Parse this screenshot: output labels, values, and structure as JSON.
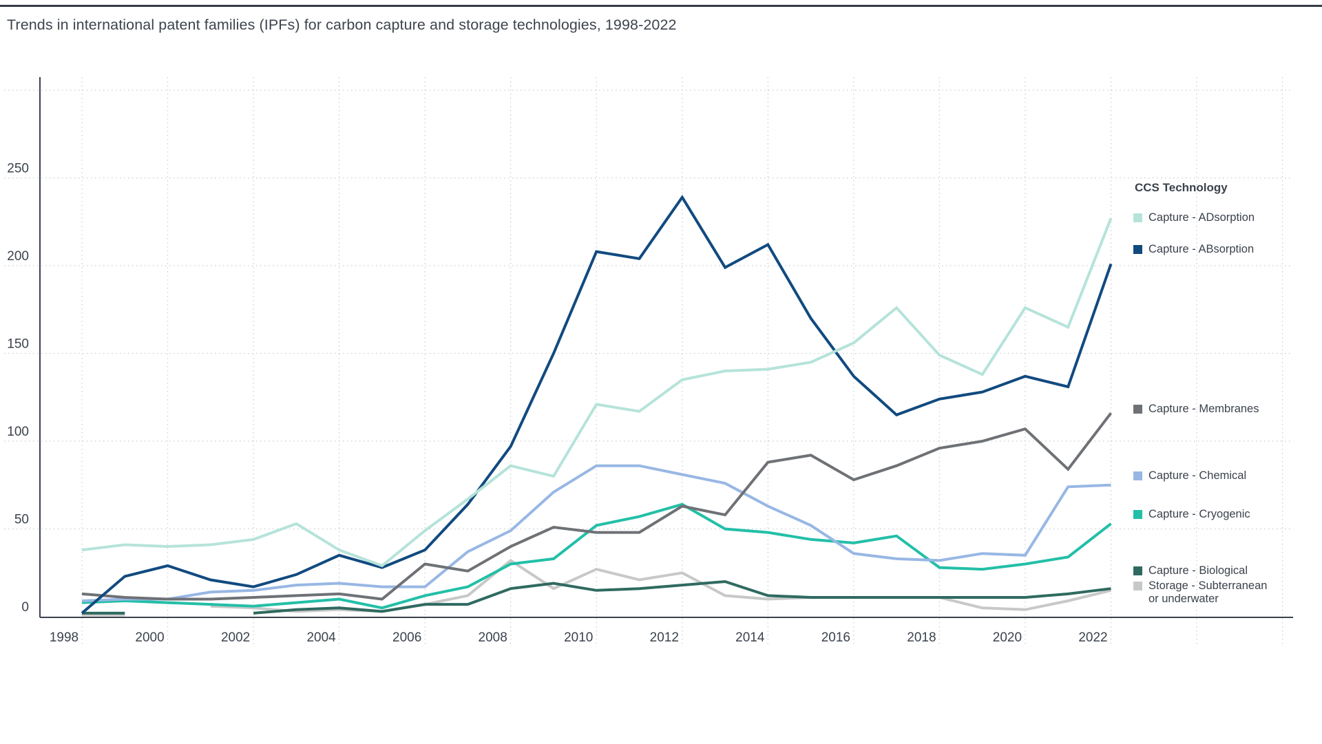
{
  "page": {
    "title": "Trends in international patent families (IPFs) for carbon capture and storage technologies, 1998-2022"
  },
  "chart_data": {
    "type": "line",
    "title": "Trends in international patent families (IPFs) for carbon capture and storage technologies, 1998-2022",
    "xlabel": "",
    "ylabel": "",
    "x": [
      1998,
      1999,
      2000,
      2001,
      2002,
      2003,
      2004,
      2005,
      2006,
      2007,
      2008,
      2009,
      2010,
      2011,
      2012,
      2013,
      2014,
      2015,
      2016,
      2017,
      2018,
      2019,
      2020,
      2021,
      2022
    ],
    "x_tick_labels": [
      "1998",
      "2000",
      "2002",
      "2004",
      "2006",
      "2008",
      "2010",
      "2012",
      "2014",
      "2016",
      "2018",
      "2020",
      "2022"
    ],
    "y_ticks": [
      0,
      50,
      100,
      150,
      200,
      250
    ],
    "ylim": [
      0,
      307
    ],
    "grid": "dotted",
    "legend_position": "right",
    "legend_title": "CCS Technology",
    "series": [
      {
        "name": "Capture - ADsorption",
        "color": "#b5e3da",
        "values": [
          38,
          41,
          40,
          41,
          44,
          53,
          38,
          29,
          49,
          67,
          86,
          80,
          121,
          117,
          135,
          140,
          141,
          145,
          156,
          176,
          149,
          138,
          176,
          165,
          227
        ]
      },
      {
        "name": "Capture - ABsorption",
        "color": "#114a7f",
        "values": [
          2,
          23,
          29,
          21,
          17,
          24,
          35,
          28,
          38,
          64,
          97,
          150,
          208,
          204,
          239,
          199,
          212,
          170,
          137,
          115,
          124,
          128,
          137,
          131,
          201
        ]
      },
      {
        "name": "Capture - Membranes",
        "color": "#6e7175",
        "values": [
          13,
          11,
          10,
          10,
          11,
          12,
          13,
          10,
          30,
          26,
          40,
          51,
          48,
          48,
          63,
          58,
          88,
          92,
          78,
          86,
          96,
          100,
          107,
          84,
          116
        ]
      },
      {
        "name": "Capture - Chemical",
        "color": "#98b7e4",
        "values": [
          9,
          10,
          10,
          14,
          15,
          18,
          19,
          17,
          17,
          37,
          49,
          71,
          86,
          86,
          81,
          76,
          63,
          52,
          36,
          33,
          32,
          36,
          35,
          74,
          75
        ]
      },
      {
        "name": "Capture - Cryogenic",
        "color": "#23bfa7",
        "values": [
          8,
          9,
          8,
          7,
          6,
          8,
          10,
          5,
          12,
          17,
          30,
          33,
          52,
          57,
          64,
          50,
          48,
          44,
          42,
          46,
          28,
          27,
          30,
          34,
          53
        ]
      },
      {
        "name": "Capture - Biological",
        "color": "#2f6a60",
        "values": [
          2,
          2,
          null,
          null,
          2,
          4,
          5,
          3,
          7,
          7,
          16,
          19,
          15,
          16,
          18,
          20,
          12,
          11,
          11,
          11,
          11,
          11,
          11,
          13,
          16
        ]
      },
      {
        "name": "Storage - Subterranean or underwater",
        "color": "#c7c9c8",
        "values": [
          1,
          1,
          null,
          6,
          5,
          3,
          4,
          3,
          7,
          12,
          32,
          16,
          27,
          21,
          25,
          12,
          10,
          11,
          11,
          11,
          11,
          5,
          4,
          9,
          15
        ]
      }
    ]
  }
}
